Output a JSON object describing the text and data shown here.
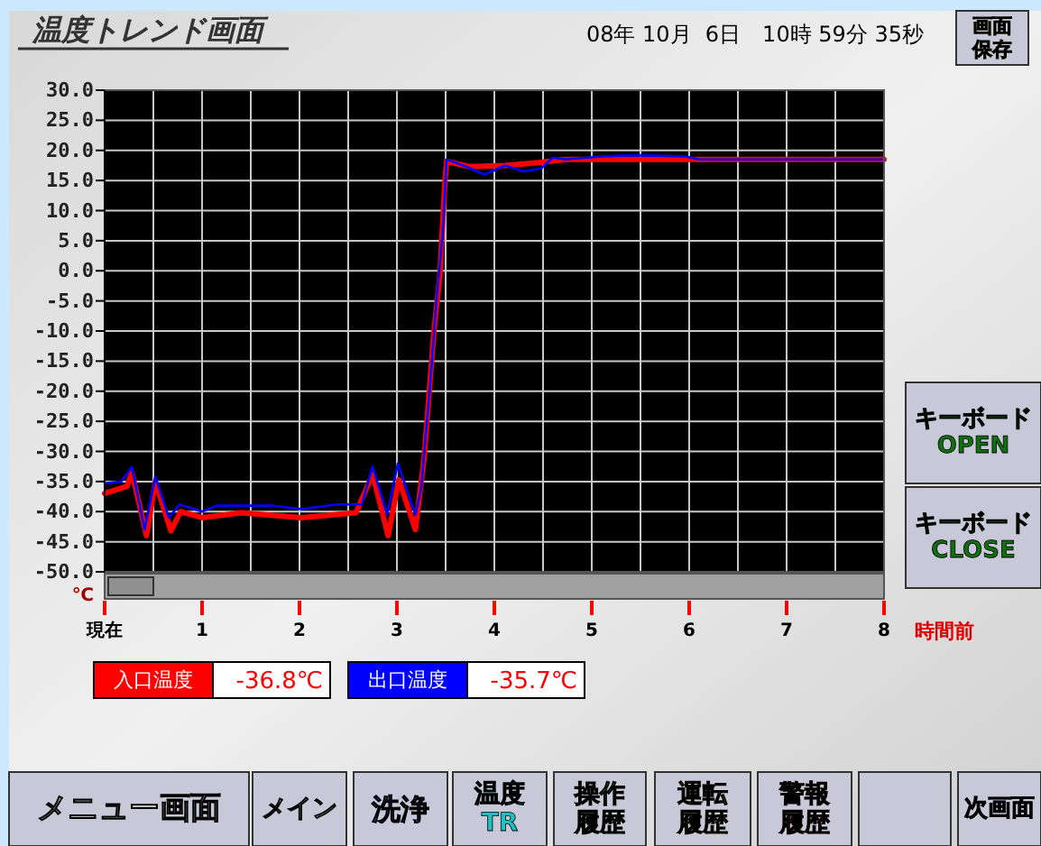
{
  "chart_data": {
    "type": "line",
    "title": "温度トレンド画面",
    "subtitle": "08年 10月  6日　10時 59分 35秒",
    "xlabel": "時間前",
    "ylabel": "℃",
    "xlim": [
      0,
      8
    ],
    "ylim": [
      -50,
      30
    ],
    "xticks": [
      {
        "value": 0,
        "label": "現在"
      },
      {
        "value": 0.5,
        "label": null
      },
      1,
      {
        "value": 1.5,
        "label": null
      },
      2,
      {
        "value": 2.5,
        "label": null
      },
      3,
      {
        "value": 3.5,
        "label": null
      },
      4,
      {
        "value": 4.5,
        "label": null
      },
      5,
      {
        "value": 5.5,
        "label": null
      },
      6,
      {
        "value": 6.5,
        "label": null
      },
      7,
      {
        "value": 7.5,
        "label": null
      },
      8
    ],
    "yticks": [
      {
        "value": 30,
        "label": "30.0"
      },
      {
        "value": 25,
        "label": "25.0"
      },
      {
        "value": 20,
        "label": "20.0"
      },
      {
        "value": 15,
        "label": "15.0"
      },
      {
        "value": 10,
        "label": "10.0"
      },
      {
        "value": 5,
        "label": "5.0"
      },
      {
        "value": 0,
        "label": "0.0"
      },
      {
        "value": -5,
        "label": "-5.0"
      },
      {
        "value": -10,
        "label": "-10.0"
      },
      {
        "value": -15,
        "label": "-15.0"
      },
      {
        "value": -20,
        "label": "-20.0"
      },
      {
        "value": -25,
        "label": "-25.0"
      },
      {
        "value": -30,
        "label": "-30.0"
      },
      {
        "value": -35,
        "label": "-35.0"
      },
      {
        "value": -40,
        "label": "-40.0"
      },
      {
        "value": -45,
        "label": "-45.0"
      },
      {
        "value": -50,
        "label": "-50.0"
      }
    ],
    "grid": true,
    "legend": "bottom left",
    "marker": "none",
    "line_style": "solid",
    "series": [
      {
        "name": "入口温度",
        "color": "#ff0000",
        "x": [
          0,
          0.23,
          0.28,
          0.43,
          0.52,
          0.68,
          0.78,
          1,
          1.4,
          2.02,
          2.58,
          2.75,
          2.91,
          3.02,
          3.19,
          3.28,
          3.38,
          3.44,
          3.49,
          3.51,
          3.74,
          4.11,
          4.48,
          4.73,
          8
        ],
        "values": [
          -37,
          -35.8,
          -33.5,
          -44,
          -35,
          -43.2,
          -40,
          -41,
          -40.2,
          -41,
          -40.2,
          -33.8,
          -44,
          -34.7,
          -43,
          -31,
          -10,
          -1,
          14,
          18.2,
          17.3,
          17.5,
          18,
          18.5,
          18.5
        ]
      },
      {
        "name": "出口温度",
        "color": "#0000ff",
        "x": [
          0,
          0.17,
          0.28,
          0.41,
          0.52,
          0.66,
          0.77,
          1,
          1.15,
          1.71,
          2.02,
          2.39,
          2.64,
          2.75,
          2.9,
          3.01,
          3.19,
          3.25,
          3.33,
          3.41,
          3.47,
          3.51,
          3.68,
          3.9,
          4.11,
          4.3,
          4.48,
          4.6,
          4.73,
          5.1,
          5.47,
          5.96,
          6.1,
          8
        ],
        "values": [
          -35.3,
          -35,
          -32.6,
          -43,
          -34.2,
          -41,
          -38.8,
          -40,
          -39,
          -39,
          -39.6,
          -38.8,
          -38.8,
          -32.5,
          -40.5,
          -32,
          -40.5,
          -36,
          -21,
          -4,
          6,
          18.5,
          17.5,
          16,
          17.5,
          16.5,
          17,
          18.8,
          18.5,
          19,
          19.2,
          19,
          18.5,
          18.5
        ]
      }
    ],
    "annotations": [
      "-36.8℃",
      "-35.7℃",
      "画面保存",
      "キーボード OPEN",
      "キーボード CLOSE",
      "メニュー画面",
      "メイン",
      "洗浄",
      "温度 TR",
      "操作履歴",
      "運転履歴",
      "警報履歴",
      "次画面"
    ]
  }
}
